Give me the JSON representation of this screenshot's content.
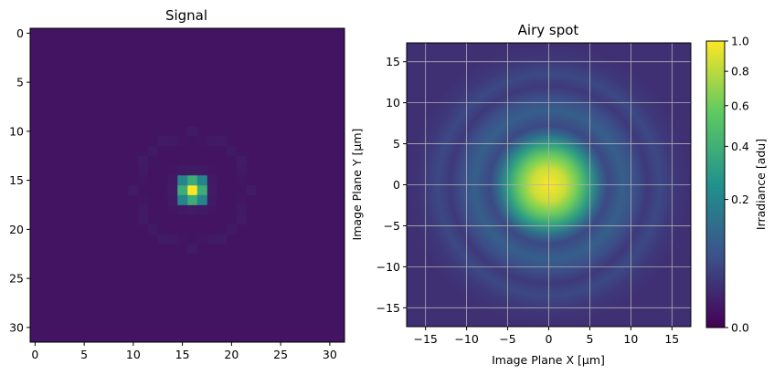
{
  "chart_data": [
    {
      "type": "heatmap",
      "title": "Signal",
      "xlabel": "",
      "ylabel": "",
      "xlim": [
        -0.5,
        31.5
      ],
      "ylim": [
        31.5,
        -0.5
      ],
      "xticks": [
        "0",
        "5",
        "10",
        "15",
        "20",
        "25",
        "30"
      ],
      "yticks": [
        "0",
        "5",
        "10",
        "15",
        "20",
        "25",
        "30"
      ],
      "grid": false,
      "colormap": "viridis",
      "shape": [
        32,
        32
      ],
      "center": [
        16,
        16
      ],
      "background_value": 0.06,
      "values": [
        {
          "row": 16,
          "col": 16,
          "value": 1.0
        },
        {
          "row": 15,
          "col": 16,
          "value": 0.62
        },
        {
          "row": 17,
          "col": 16,
          "value": 0.62
        },
        {
          "row": 16,
          "col": 15,
          "value": 0.62
        },
        {
          "row": 16,
          "col": 17,
          "value": 0.62
        },
        {
          "row": 15,
          "col": 15,
          "value": 0.45
        },
        {
          "row": 15,
          "col": 17,
          "value": 0.45
        },
        {
          "row": 17,
          "col": 15,
          "value": 0.45
        },
        {
          "row": 17,
          "col": 17,
          "value": 0.45
        }
      ]
    },
    {
      "type": "heatmap",
      "title": "Airy spot",
      "xlabel": "Image Plane X [µm]",
      "ylabel": "Image Plane Y [µm]",
      "xlim": [
        -17.3,
        17.3
      ],
      "ylim": [
        -17.3,
        17.3
      ],
      "xticks": [
        "−15",
        "−10",
        "−5",
        "0",
        "5",
        "10",
        "15"
      ],
      "yticks": [
        "15",
        "10",
        "5",
        "0",
        "−5",
        "−10",
        "−15"
      ],
      "grid": true,
      "colormap": "viridis",
      "colorbar": {
        "label": "Irradiance [adu]",
        "ticks": [
          "0.0",
          "0.2",
          "0.4",
          "0.6",
          "0.8",
          "1.0"
        ],
        "range": [
          0,
          1
        ],
        "scale": "power (nonlinear)"
      },
      "radial_profile": [
        {
          "r": 0,
          "value": 1.0
        },
        {
          "r": 2,
          "value": 0.85
        },
        {
          "r": 3.5,
          "value": 0.6
        },
        {
          "r": 5,
          "value": 0.3
        },
        {
          "r": 6.2,
          "value": 0.12
        },
        {
          "r": 7.2,
          "value": 0.05
        },
        {
          "r": 9,
          "value": 0.09
        },
        {
          "r": 10.5,
          "value": 0.06
        },
        {
          "r": 12,
          "value": 0.03
        },
        {
          "r": 13.5,
          "value": 0.05
        },
        {
          "r": 15,
          "value": 0.03
        },
        {
          "r": 17.3,
          "value": 0.02
        }
      ]
    }
  ]
}
